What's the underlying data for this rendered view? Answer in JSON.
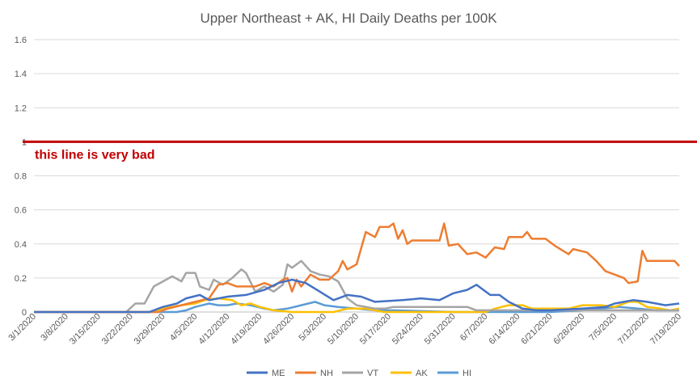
{
  "chart_data": {
    "type": "line",
    "title": "Upper Northeast + AK, HI Daily Deaths per 100K",
    "xlabel": "",
    "ylabel": "",
    "ylim": [
      0,
      1.6
    ],
    "y_ticks": [
      "0",
      "0.2",
      "0.4",
      "0.6",
      "0.8",
      "1",
      "1.2",
      "1.4",
      "1.6"
    ],
    "x_ticks": [
      "3/1/2020",
      "3/8/2020",
      "3/15/2020",
      "3/22/2020",
      "3/29/2020",
      "4/5/2020",
      "4/12/2020",
      "4/19/2020",
      "4/26/2020",
      "5/3/2020",
      "5/10/2020",
      "5/17/2020",
      "5/24/2020",
      "5/31/2020",
      "6/7/2020",
      "6/14/2020",
      "6/21/2020",
      "6/28/2020",
      "7/5/2020",
      "7/12/2020",
      "7/19/2020"
    ],
    "x_start": "3/1/2020",
    "x_end": "7/19/2020",
    "grid": true,
    "legend_position": "bottom",
    "reference_line": {
      "value": 1,
      "label": "this line is very bad",
      "color": "#C00000"
    },
    "series": [
      {
        "name": "ME",
        "color": "#4472C4",
        "points": [
          [
            "3/1/2020",
            0
          ],
          [
            "3/26/2020",
            0
          ],
          [
            "3/29/2020",
            0.03
          ],
          [
            "4/1/2020",
            0.05
          ],
          [
            "4/3/2020",
            0.08
          ],
          [
            "4/6/2020",
            0.1
          ],
          [
            "4/8/2020",
            0.07
          ],
          [
            "4/12/2020",
            0.09
          ],
          [
            "4/16/2020",
            0.1
          ],
          [
            "4/20/2020",
            0.13
          ],
          [
            "4/23/2020",
            0.17
          ],
          [
            "4/26/2020",
            0.19
          ],
          [
            "4/29/2020",
            0.17
          ],
          [
            "5/2/2020",
            0.12
          ],
          [
            "5/5/2020",
            0.07
          ],
          [
            "5/8/2020",
            0.1
          ],
          [
            "5/11/2020",
            0.09
          ],
          [
            "5/14/2020",
            0.06
          ],
          [
            "5/20/2020",
            0.07
          ],
          [
            "5/24/2020",
            0.08
          ],
          [
            "5/28/2020",
            0.07
          ],
          [
            "5/31/2020",
            0.11
          ],
          [
            "6/3/2020",
            0.13
          ],
          [
            "6/5/2020",
            0.16
          ],
          [
            "6/8/2020",
            0.1
          ],
          [
            "6/10/2020",
            0.1
          ],
          [
            "6/12/2020",
            0.06
          ],
          [
            "6/15/2020",
            0.02
          ],
          [
            "6/18/2020",
            0.01
          ],
          [
            "6/21/2020",
            0.01
          ],
          [
            "6/28/2020",
            0.02
          ],
          [
            "7/3/2020",
            0.03
          ],
          [
            "7/5/2020",
            0.05
          ],
          [
            "7/9/2020",
            0.07
          ],
          [
            "7/12/2020",
            0.06
          ],
          [
            "7/16/2020",
            0.04
          ],
          [
            "7/19/2020",
            0.05
          ]
        ]
      },
      {
        "name": "NH",
        "color": "#ED7D31",
        "points": [
          [
            "3/1/2020",
            0
          ],
          [
            "3/28/2020",
            0
          ],
          [
            "3/30/2020",
            0.02
          ],
          [
            "4/2/2020",
            0.04
          ],
          [
            "4/5/2020",
            0.06
          ],
          [
            "4/8/2020",
            0.08
          ],
          [
            "4/10/2020",
            0.16
          ],
          [
            "4/12/2020",
            0.17
          ],
          [
            "4/14/2020",
            0.15
          ],
          [
            "4/18/2020",
            0.15
          ],
          [
            "4/20/2020",
            0.17
          ],
          [
            "4/22/2020",
            0.15
          ],
          [
            "4/24/2020",
            0.19
          ],
          [
            "4/25/2020",
            0.2
          ],
          [
            "4/26/2020",
            0.12
          ],
          [
            "4/27/2020",
            0.19
          ],
          [
            "4/28/2020",
            0.15
          ],
          [
            "4/30/2020",
            0.22
          ],
          [
            "5/2/2020",
            0.19
          ],
          [
            "5/4/2020",
            0.19
          ],
          [
            "5/6/2020",
            0.24
          ],
          [
            "5/7/2020",
            0.3
          ],
          [
            "5/8/2020",
            0.25
          ],
          [
            "5/10/2020",
            0.28
          ],
          [
            "5/12/2020",
            0.47
          ],
          [
            "5/14/2020",
            0.44
          ],
          [
            "5/15/2020",
            0.5
          ],
          [
            "5/17/2020",
            0.5
          ],
          [
            "5/18/2020",
            0.52
          ],
          [
            "5/19/2020",
            0.43
          ],
          [
            "5/20/2020",
            0.48
          ],
          [
            "5/21/2020",
            0.4
          ],
          [
            "5/22/2020",
            0.42
          ],
          [
            "5/26/2020",
            0.42
          ],
          [
            "5/28/2020",
            0.42
          ],
          [
            "5/29/2020",
            0.52
          ],
          [
            "5/30/2020",
            0.39
          ],
          [
            "6/1/2020",
            0.4
          ],
          [
            "6/3/2020",
            0.34
          ],
          [
            "6/5/2020",
            0.35
          ],
          [
            "6/7/2020",
            0.32
          ],
          [
            "6/9/2020",
            0.38
          ],
          [
            "6/11/2020",
            0.37
          ],
          [
            "6/12/2020",
            0.44
          ],
          [
            "6/15/2020",
            0.44
          ],
          [
            "6/16/2020",
            0.47
          ],
          [
            "6/17/2020",
            0.43
          ],
          [
            "6/20/2020",
            0.43
          ],
          [
            "6/22/2020",
            0.39
          ],
          [
            "6/25/2020",
            0.34
          ],
          [
            "6/26/2020",
            0.37
          ],
          [
            "6/29/2020",
            0.35
          ],
          [
            "7/1/2020",
            0.3
          ],
          [
            "7/3/2020",
            0.24
          ],
          [
            "7/5/2020",
            0.22
          ],
          [
            "7/7/2020",
            0.2
          ],
          [
            "7/8/2020",
            0.17
          ],
          [
            "7/10/2020",
            0.18
          ],
          [
            "7/11/2020",
            0.36
          ],
          [
            "7/12/2020",
            0.3
          ],
          [
            "7/15/2020",
            0.3
          ],
          [
            "7/18/2020",
            0.3
          ],
          [
            "7/19/2020",
            0.27
          ]
        ]
      },
      {
        "name": "VT",
        "color": "#A5A5A5",
        "points": [
          [
            "3/1/2020",
            0
          ],
          [
            "3/21/2020",
            0
          ],
          [
            "3/23/2020",
            0.05
          ],
          [
            "3/25/2020",
            0.05
          ],
          [
            "3/27/2020",
            0.15
          ],
          [
            "3/29/2020",
            0.18
          ],
          [
            "3/31/2020",
            0.21
          ],
          [
            "4/2/2020",
            0.18
          ],
          [
            "4/3/2020",
            0.23
          ],
          [
            "4/5/2020",
            0.23
          ],
          [
            "4/6/2020",
            0.15
          ],
          [
            "4/8/2020",
            0.13
          ],
          [
            "4/9/2020",
            0.19
          ],
          [
            "4/11/2020",
            0.16
          ],
          [
            "4/13/2020",
            0.2
          ],
          [
            "4/15/2020",
            0.25
          ],
          [
            "4/16/2020",
            0.23
          ],
          [
            "4/18/2020",
            0.12
          ],
          [
            "4/20/2020",
            0.15
          ],
          [
            "4/22/2020",
            0.12
          ],
          [
            "4/24/2020",
            0.16
          ],
          [
            "4/25/2020",
            0.28
          ],
          [
            "4/26/2020",
            0.26
          ],
          [
            "4/28/2020",
            0.3
          ],
          [
            "4/30/2020",
            0.24
          ],
          [
            "5/2/2020",
            0.22
          ],
          [
            "5/4/2020",
            0.21
          ],
          [
            "5/6/2020",
            0.18
          ],
          [
            "5/8/2020",
            0.08
          ],
          [
            "5/10/2020",
            0.04
          ],
          [
            "5/12/2020",
            0.03
          ],
          [
            "5/14/2020",
            0.02
          ],
          [
            "5/16/2020",
            0.02
          ],
          [
            "5/18/2020",
            0.03
          ],
          [
            "5/20/2020",
            0.03
          ],
          [
            "5/25/2020",
            0.03
          ],
          [
            "5/27/2020",
            0.03
          ],
          [
            "6/3/2020",
            0.03
          ],
          [
            "6/5/2020",
            0.01
          ],
          [
            "6/10/2020",
            0.01
          ],
          [
            "6/14/2020",
            0.01
          ],
          [
            "6/21/2020",
            0.01
          ],
          [
            "6/28/2020",
            0.01
          ],
          [
            "7/19/2020",
            0.01
          ]
        ]
      },
      {
        "name": "AK",
        "color": "#FFC000",
        "points": [
          [
            "3/1/2020",
            0
          ],
          [
            "3/26/2020",
            0
          ],
          [
            "3/29/2020",
            0.02
          ],
          [
            "4/2/2020",
            0.04
          ],
          [
            "4/5/2020",
            0.05
          ],
          [
            "4/7/2020",
            0.07
          ],
          [
            "4/10/2020",
            0.08
          ],
          [
            "4/13/2020",
            0.07
          ],
          [
            "4/15/2020",
            0.04
          ],
          [
            "4/17/2020",
            0.05
          ],
          [
            "4/19/2020",
            0.03
          ],
          [
            "4/22/2020",
            0.01
          ],
          [
            "4/26/2020",
            0
          ],
          [
            "5/1/2020",
            0
          ],
          [
            "5/5/2020",
            0
          ],
          [
            "5/8/2020",
            0.02
          ],
          [
            "5/12/2020",
            0.02
          ],
          [
            "5/16/2020",
            0
          ],
          [
            "6/7/2020",
            0
          ],
          [
            "6/9/2020",
            0.02
          ],
          [
            "6/12/2020",
            0.04
          ],
          [
            "6/15/2020",
            0.04
          ],
          [
            "6/17/2020",
            0.02
          ],
          [
            "6/21/2020",
            0.02
          ],
          [
            "6/25/2020",
            0.02
          ],
          [
            "6/28/2020",
            0.04
          ],
          [
            "7/2/2020",
            0.04
          ],
          [
            "7/5/2020",
            0.03
          ],
          [
            "7/8/2020",
            0.06
          ],
          [
            "7/10/2020",
            0.06
          ],
          [
            "7/12/2020",
            0.03
          ],
          [
            "7/15/2020",
            0.02
          ],
          [
            "7/17/2020",
            0.01
          ],
          [
            "7/19/2020",
            0.02
          ]
        ]
      },
      {
        "name": "HI",
        "color": "#5B9BD5",
        "points": [
          [
            "3/1/2020",
            0
          ],
          [
            "4/1/2020",
            0
          ],
          [
            "4/3/2020",
            0.01
          ],
          [
            "4/5/2020",
            0.03
          ],
          [
            "4/8/2020",
            0.05
          ],
          [
            "4/10/2020",
            0.04
          ],
          [
            "4/12/2020",
            0.04
          ],
          [
            "4/14/2020",
            0.05
          ],
          [
            "4/17/2020",
            0.04
          ],
          [
            "4/20/2020",
            0.02
          ],
          [
            "4/22/2020",
            0.01
          ],
          [
            "4/25/2020",
            0.02
          ],
          [
            "4/28/2020",
            0.04
          ],
          [
            "5/1/2020",
            0.06
          ],
          [
            "5/3/2020",
            0.04
          ],
          [
            "5/6/2020",
            0.03
          ],
          [
            "5/10/2020",
            0.02
          ],
          [
            "5/14/2020",
            0.01
          ],
          [
            "5/18/2020",
            0.01
          ],
          [
            "5/31/2020",
            0
          ],
          [
            "6/21/2020",
            0
          ],
          [
            "6/28/2020",
            0.01
          ],
          [
            "7/2/2020",
            0.02
          ],
          [
            "7/6/2020",
            0.03
          ],
          [
            "7/10/2020",
            0.02
          ],
          [
            "7/14/2020",
            0.01
          ],
          [
            "7/19/2020",
            0.01
          ]
        ]
      }
    ]
  }
}
